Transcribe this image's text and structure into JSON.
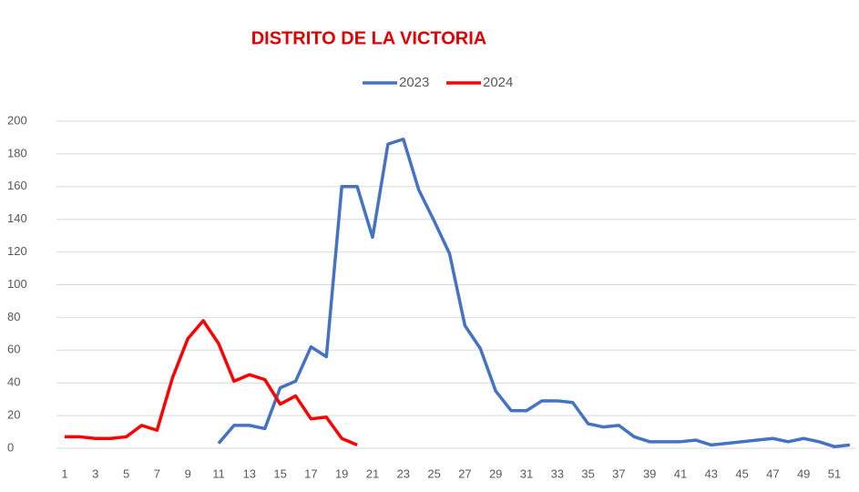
{
  "chart_data": {
    "type": "line",
    "title": "DISTRITO DE LA VICTORIA",
    "categories": [
      "1",
      null,
      "3",
      null,
      "5",
      null,
      "7",
      null,
      "9",
      null,
      "11",
      null,
      "13",
      null,
      "15",
      null,
      "17",
      null,
      "19",
      null,
      "21",
      null,
      "23",
      null,
      "25",
      null,
      "27",
      null,
      "29",
      null,
      "31",
      null,
      "33",
      null,
      "35",
      null,
      "37",
      null,
      "39",
      null,
      "41",
      null,
      "43",
      null,
      "45",
      null,
      "47",
      null,
      "49",
      null,
      "51",
      null
    ],
    "series": [
      {
        "name": "2023",
        "color": "#4472c4",
        "values": [
          null,
          null,
          null,
          null,
          null,
          null,
          null,
          null,
          null,
          null,
          3,
          14,
          14,
          12,
          37,
          41,
          62,
          56,
          160,
          160,
          129,
          186,
          189,
          158,
          139,
          119,
          75,
          61,
          35,
          23,
          23,
          29,
          29,
          28,
          15,
          13,
          14,
          7,
          4,
          4,
          4,
          5,
          2,
          3,
          4,
          5,
          6,
          4,
          6,
          4,
          1,
          2
        ]
      },
      {
        "name": "2024",
        "color": "#ff0000",
        "values": [
          7,
          7,
          6,
          6,
          7,
          14,
          11,
          43,
          67,
          78,
          64,
          41,
          45,
          42,
          27,
          32,
          18,
          19,
          6,
          2,
          null,
          null,
          null,
          null,
          null,
          null,
          null,
          null,
          null,
          null,
          null,
          null,
          null,
          null,
          null,
          null,
          null,
          null,
          null,
          null,
          null,
          null,
          null,
          null,
          null,
          null,
          null,
          null,
          null,
          null,
          null,
          null
        ]
      }
    ],
    "ylim": [
      0,
      200
    ],
    "yticks": [
      0,
      20,
      40,
      60,
      80,
      100,
      120,
      140,
      160,
      180,
      200
    ],
    "grid": true,
    "legend": "top"
  }
}
